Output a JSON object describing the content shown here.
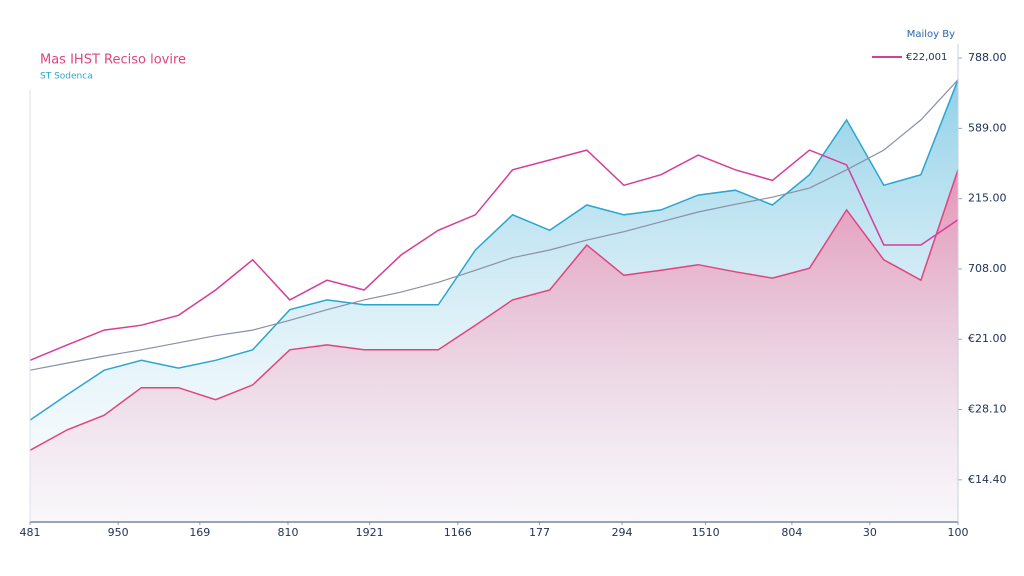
{
  "chart_data": {
    "type": "area",
    "title": "Mas IHST Reciso lovire",
    "subtitle": "ST Sodenca",
    "annotation": "Mailoy By",
    "x": [
      0,
      4,
      8,
      12,
      16,
      20,
      24,
      28,
      32,
      36,
      40,
      44,
      48,
      52,
      56,
      60,
      64,
      68,
      72,
      76,
      80,
      84,
      88,
      92,
      96,
      100
    ],
    "xlim": [
      0,
      100
    ],
    "xticks": [
      {
        "value": 0,
        "label": "481"
      },
      {
        "value": 9.5,
        "label": "950"
      },
      {
        "value": 18.3,
        "label": "169"
      },
      {
        "value": 27.8,
        "label": "810"
      },
      {
        "value": 36.6,
        "label": "1921"
      },
      {
        "value": 46.1,
        "label": "1166"
      },
      {
        "value": 54.9,
        "label": "177"
      },
      {
        "value": 63.8,
        "label": "294"
      },
      {
        "value": 72.8,
        "label": "1510"
      },
      {
        "value": 82.1,
        "label": "804"
      },
      {
        "value": 90.5,
        "label": "30"
      },
      {
        "value": 100,
        "label": "100"
      }
    ],
    "ylim": [
      -0.6,
      6.2
    ],
    "yticks": [
      {
        "value": 6,
        "label": "788.00"
      },
      {
        "value": 5,
        "label": "589.00"
      },
      {
        "value": 4,
        "label": "215.00"
      },
      {
        "value": 3,
        "label": "708.00"
      },
      {
        "value": 2,
        "label": "€21.00"
      },
      {
        "value": 1,
        "label": "€28.10"
      },
      {
        "value": 0,
        "label": "€14.40"
      }
    ],
    "series": [
      {
        "color": "#2aa6cf",
        "values": [
          0.85,
          1.21,
          1.56,
          1.7,
          1.59,
          1.7,
          1.85,
          2.42,
          2.56,
          2.49,
          2.49,
          2.49,
          3.27,
          3.77,
          3.55,
          3.91,
          3.77,
          3.84,
          4.05,
          4.12,
          3.91,
          4.34,
          5.12,
          4.19,
          4.34,
          5.69
        ]
      },
      {
        "color": "#e0447f",
        "values": [
          0.42,
          0.71,
          0.92,
          1.31,
          1.31,
          1.14,
          1.35,
          1.85,
          1.92,
          1.85,
          1.85,
          1.85,
          2.2,
          2.56,
          2.7,
          3.34,
          2.91,
          2.98,
          3.06,
          2.96,
          2.87,
          3.01,
          3.84,
          3.13,
          2.84,
          4.41
        ]
      },
      {
        "name": "€22,001",
        "color": "#d63c9a",
        "values": [
          1.7,
          1.92,
          2.13,
          2.2,
          2.34,
          2.7,
          3.13,
          2.56,
          2.84,
          2.7,
          3.2,
          3.55,
          3.77,
          4.41,
          4.55,
          4.69,
          4.19,
          4.34,
          4.62,
          4.41,
          4.26,
          4.69,
          4.48,
          3.34,
          3.34,
          3.7
        ]
      },
      {
        "color": "#8a8fa8",
        "values": [
          1.56,
          1.66,
          1.76,
          1.85,
          1.95,
          2.05,
          2.13,
          2.27,
          2.42,
          2.56,
          2.67,
          2.81,
          2.98,
          3.16,
          3.27,
          3.41,
          3.53,
          3.67,
          3.81,
          3.92,
          4.02,
          4.15,
          4.41,
          4.69,
          5.12,
          5.69
        ]
      }
    ]
  }
}
